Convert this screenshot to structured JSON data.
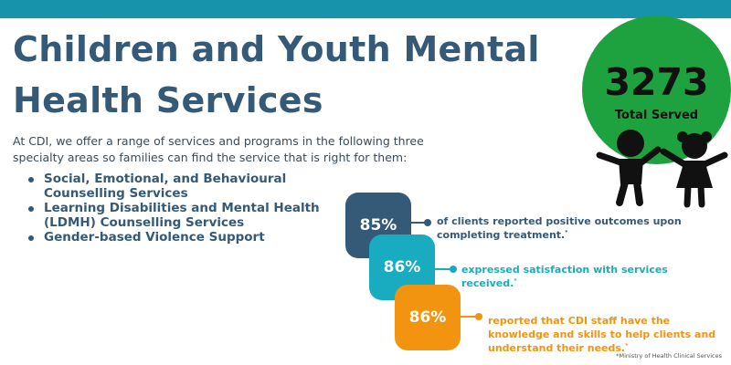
{
  "header": {
    "title": "Children and Youth Mental Health Services",
    "accent_bar_color": "#1794ac"
  },
  "intro": "At CDI, we offer a range of services and programs in the following three specialty areas so families can find the service that is right for them:",
  "specialty_areas": [
    "Social, Emotional, and Behavioural Counselling Services",
    "Learning Disabilities and Mental Health (LDMH) Counselling Services",
    "Gender-based Violence Support"
  ],
  "total_served": {
    "number": "3273",
    "label": "Total Served",
    "circle_color": "#1ea13f",
    "icon": "children-icon"
  },
  "stats": [
    {
      "value": "85%",
      "text": "of clients reported positive outcomes upon completing treatment.",
      "marker": "*",
      "color": "#345a78"
    },
    {
      "value": "86%",
      "text": "expressed satisfaction with services received.",
      "marker": "*",
      "color": "#19acc0"
    },
    {
      "value": "86%",
      "text": "reported that CDI staff have the knowledge and skills to help clients and understand their needs.",
      "marker": "*",
      "color": "#f29410"
    }
  ],
  "footnote": "*Ministry of Health Clinical Services"
}
